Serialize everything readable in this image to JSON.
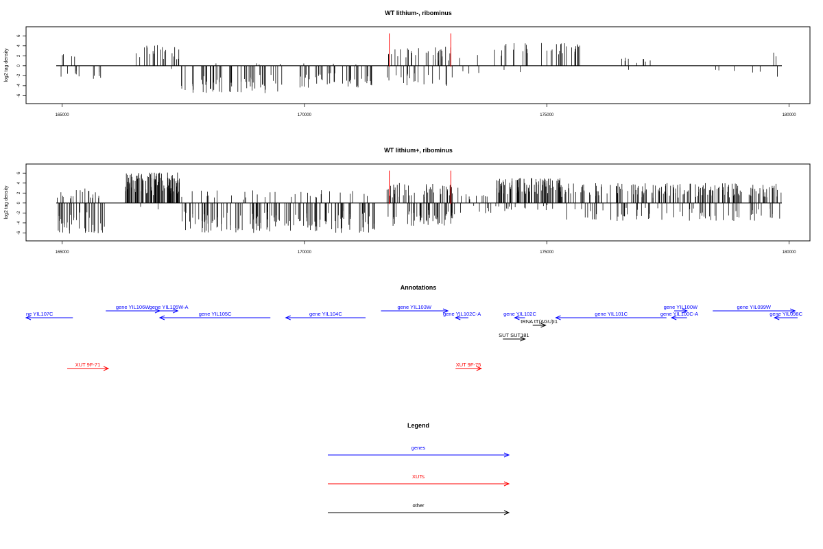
{
  "colors": {
    "gene": "#0000ff",
    "xut": "#ff0000",
    "other": "#000000",
    "marker": "#ff0000",
    "bar": "#000000"
  },
  "chart_data": [
    {
      "type": "bar",
      "title": "WT lithium-, ribominus",
      "ylabel": "log2 tag density",
      "xlim": [
        164850,
        179850
      ],
      "ylim": [
        -6.5,
        7
      ],
      "yticks": [
        -6,
        -4,
        -2,
        0,
        2,
        4,
        6
      ],
      "xticks": [
        165000,
        170000,
        175000,
        180000
      ],
      "red_markers": [
        171750,
        173020
      ],
      "density_segments": [
        {
          "from": 164900,
          "to": 165350,
          "n": 10,
          "pos": 2.4,
          "neg": 2.6,
          "pfrac": 0.4
        },
        {
          "from": 165600,
          "to": 165800,
          "n": 5,
          "pos": 0.6,
          "neg": 2.8,
          "pfrac": 0.1
        },
        {
          "from": 166520,
          "to": 167450,
          "n": 22,
          "pos": 4.5,
          "neg": 0.9,
          "pfrac": 0.95
        },
        {
          "from": 167450,
          "to": 169550,
          "n": 60,
          "pos": 0.6,
          "neg": 5.5,
          "pfrac": 0.04
        },
        {
          "from": 169900,
          "to": 171400,
          "n": 45,
          "pos": 0.5,
          "neg": 4.4,
          "pfrac": 0.04
        },
        {
          "from": 171700,
          "to": 173050,
          "n": 52,
          "pos": 3.9,
          "neg": 4.1,
          "pfrac": 0.6
        },
        {
          "from": 173200,
          "to": 173600,
          "n": 5,
          "pos": 2.2,
          "neg": 1.6,
          "pfrac": 0.5
        },
        {
          "from": 173900,
          "to": 175800,
          "n": 35,
          "pos": 4.6,
          "neg": 1.6,
          "pfrac": 0.9
        },
        {
          "from": 176300,
          "to": 177700,
          "n": 10,
          "pos": 1.8,
          "neg": 2.0,
          "pfrac": 0.75
        },
        {
          "from": 178400,
          "to": 179850,
          "n": 8,
          "pos": 3.4,
          "neg": 2.9,
          "pfrac": 0.5
        }
      ]
    },
    {
      "type": "bar",
      "title": "WT lithium+, ribominus",
      "ylabel": "log2 tag density",
      "xlim": [
        164850,
        179850
      ],
      "ylim": [
        -6.5,
        7
      ],
      "yticks": [
        -6,
        -4,
        -2,
        0,
        2,
        4,
        6
      ],
      "xticks": [
        165000,
        170000,
        175000,
        180000
      ],
      "red_markers": [
        171750,
        173020
      ],
      "density_segments": [
        {
          "from": 164900,
          "to": 165900,
          "n": 55,
          "pos": 3.0,
          "neg": 6.2,
          "pfrac": 0.35
        },
        {
          "from": 166300,
          "to": 167450,
          "n": 110,
          "pos": 6.2,
          "neg": 1.5,
          "pfrac": 0.95
        },
        {
          "from": 167450,
          "to": 171450,
          "n": 170,
          "pos": 2.6,
          "neg": 6.0,
          "pfrac": 0.15
        },
        {
          "from": 171700,
          "to": 173200,
          "n": 95,
          "pos": 4.0,
          "neg": 4.6,
          "pfrac": 0.5
        },
        {
          "from": 173200,
          "to": 173950,
          "n": 18,
          "pos": 1.8,
          "neg": 2.2,
          "pfrac": 0.5
        },
        {
          "from": 173950,
          "to": 175300,
          "n": 110,
          "pos": 5.0,
          "neg": 1.6,
          "pfrac": 0.93
        },
        {
          "from": 175300,
          "to": 179850,
          "n": 240,
          "pos": 4.0,
          "neg": 3.6,
          "pfrac": 0.78
        }
      ]
    }
  ],
  "annotations": {
    "title": "Annotations",
    "features": [
      {
        "label": "ne YIL107C",
        "type": "gene",
        "start": 164850,
        "end": 165760,
        "strand": "-",
        "row": 1
      },
      {
        "label": "gene YIL106W",
        "type": "gene",
        "start": 166400,
        "end": 167450,
        "strand": "+",
        "row": 0
      },
      {
        "label": "gene YIL105W-A",
        "type": "gene",
        "start": 167450,
        "end": 167800,
        "strand": "+",
        "row": 0
      },
      {
        "label": "gene YIL105C",
        "type": "gene",
        "start": 167450,
        "end": 169600,
        "strand": "-",
        "row": 1
      },
      {
        "label": "gene YIL104C",
        "type": "gene",
        "start": 169900,
        "end": 171450,
        "strand": "-",
        "row": 1
      },
      {
        "label": "gene YIL103W",
        "type": "gene",
        "start": 171750,
        "end": 173050,
        "strand": "+",
        "row": 0
      },
      {
        "label": "gene YIL102C-A",
        "type": "gene",
        "start": 173200,
        "end": 173450,
        "strand": "-",
        "row": 1
      },
      {
        "label": "gene YIL102C",
        "type": "gene",
        "start": 174350,
        "end": 174550,
        "strand": "-",
        "row": 1
      },
      {
        "label": "tRNA tT(AGU)I1",
        "type": "other",
        "start": 174700,
        "end": 174950,
        "strand": "+",
        "row": 2
      },
      {
        "label": "gene YIL101C",
        "type": "gene",
        "start": 175150,
        "end": 177300,
        "strand": "-",
        "row": 1
      },
      {
        "label": "gene YIL100W",
        "type": "gene",
        "start": 177450,
        "end": 177700,
        "strand": "+",
        "row": 0
      },
      {
        "label": "gene YIL100C-A",
        "type": "gene",
        "start": 177400,
        "end": 177700,
        "strand": "-",
        "row": 1
      },
      {
        "label": "gene YIL099W",
        "type": "gene",
        "start": 178200,
        "end": 179800,
        "strand": "+",
        "row": 0
      },
      {
        "label": "gene YIL098C",
        "type": "gene",
        "start": 179400,
        "end": 179850,
        "strand": "-",
        "row": 1
      },
      {
        "label": "SUT SUT181",
        "type": "other",
        "start": 174120,
        "end": 174550,
        "strand": "+",
        "row": 3
      },
      {
        "label": "XUT 9F-71",
        "type": "xut",
        "start": 165650,
        "end": 166450,
        "strand": "+",
        "row": 4
      },
      {
        "label": "XUT 9F-75",
        "type": "xut",
        "start": 173200,
        "end": 173700,
        "strand": "+",
        "row": 4
      }
    ]
  },
  "legend": {
    "title": "Legend",
    "items": [
      {
        "label": "genes",
        "type": "gene"
      },
      {
        "label": "XUTs",
        "type": "xut"
      },
      {
        "label": "other",
        "type": "other"
      }
    ]
  }
}
